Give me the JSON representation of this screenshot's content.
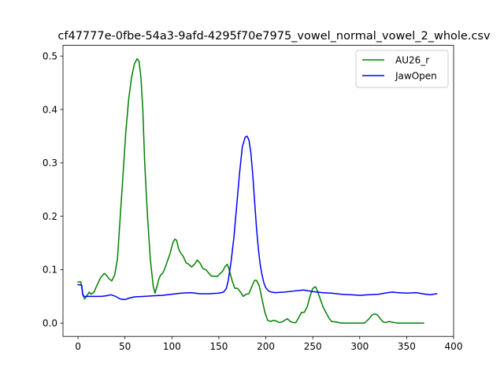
{
  "chart_data": {
    "type": "line",
    "title": "cf47777e-0fbe-54a3-9afd-4295f70e7975_vowel_normal_vowel_2_whole.csv",
    "xlabel": "",
    "ylabel": "",
    "xlim": [
      -16,
      400
    ],
    "ylim": [
      -0.025,
      0.52
    ],
    "xticks": [
      0,
      50,
      100,
      150,
      200,
      250,
      300,
      350,
      400
    ],
    "yticks": [
      0.0,
      0.1,
      0.2,
      0.3,
      0.4,
      0.5
    ],
    "ytick_labels": [
      "0.0",
      "0.1",
      "0.2",
      "0.3",
      "0.4",
      "0.5"
    ],
    "grid": false,
    "legend_position": "top-right",
    "series": [
      {
        "name": "AU26_r",
        "color": "#008000",
        "x": [
          0,
          3,
          5,
          7,
          9,
          12,
          14,
          17,
          20,
          24,
          28,
          30,
          33,
          36,
          39,
          42,
          45,
          48,
          51,
          54,
          57,
          60,
          63,
          65,
          67,
          69,
          71,
          74,
          77,
          80,
          82,
          84,
          86,
          88,
          90,
          92,
          95,
          98,
          101,
          103,
          105,
          107,
          109,
          112,
          115,
          118,
          121,
          124,
          127,
          130,
          133,
          136,
          139,
          142,
          145,
          148,
          151,
          154,
          157,
          159,
          161,
          164,
          167,
          170,
          173,
          176,
          179,
          182,
          185,
          188,
          190,
          193,
          196,
          199,
          202,
          205,
          208,
          211,
          214,
          217,
          220,
          223,
          226,
          229,
          232,
          235,
          238,
          241,
          244,
          247,
          250,
          253,
          255,
          258,
          261,
          264,
          267,
          270,
          275,
          280,
          285,
          290,
          295,
          300,
          305,
          310,
          313,
          316,
          319,
          322,
          325,
          328,
          331,
          334,
          337,
          340,
          345,
          350,
          355,
          360,
          368
        ],
        "y": [
          0.077,
          0.077,
          0.055,
          0.045,
          0.05,
          0.058,
          0.054,
          0.058,
          0.07,
          0.085,
          0.093,
          0.09,
          0.083,
          0.079,
          0.09,
          0.12,
          0.2,
          0.28,
          0.36,
          0.42,
          0.46,
          0.485,
          0.495,
          0.49,
          0.46,
          0.4,
          0.3,
          0.2,
          0.12,
          0.07,
          0.056,
          0.068,
          0.082,
          0.09,
          0.093,
          0.1,
          0.115,
          0.13,
          0.15,
          0.157,
          0.155,
          0.14,
          0.132,
          0.125,
          0.113,
          0.11,
          0.105,
          0.11,
          0.118,
          0.112,
          0.102,
          0.1,
          0.094,
          0.088,
          0.088,
          0.087,
          0.092,
          0.097,
          0.107,
          0.11,
          0.1,
          0.08,
          0.065,
          0.065,
          0.058,
          0.05,
          0.054,
          0.055,
          0.068,
          0.08,
          0.08,
          0.07,
          0.045,
          0.02,
          0.005,
          0.003,
          0.005,
          0.004,
          0.001,
          0.002,
          0.005,
          0.008,
          0.003,
          0.001,
          0.001,
          0.01,
          0.02,
          0.02,
          0.03,
          0.05,
          0.065,
          0.068,
          0.06,
          0.045,
          0.03,
          0.02,
          0.01,
          0.003,
          0.002,
          0.0,
          0.0,
          0.0,
          0.0,
          0.0,
          0.0,
          0.008,
          0.015,
          0.017,
          0.015,
          0.008,
          0.002,
          0.001,
          0.003,
          0.002,
          0.001,
          0.0,
          0.0,
          0.0,
          0.0,
          0.0,
          0.0
        ]
      },
      {
        "name": "JawOpen",
        "color": "#0000ff",
        "x": [
          0,
          4,
          5,
          6,
          10,
          15,
          20,
          25,
          30,
          35,
          40,
          45,
          50,
          55,
          60,
          70,
          80,
          90,
          100,
          110,
          120,
          130,
          140,
          150,
          155,
          158,
          160,
          163,
          166,
          169,
          172,
          175,
          178,
          180,
          182,
          184,
          186,
          188,
          190,
          192,
          194,
          196,
          198,
          200,
          203,
          206,
          210,
          220,
          230,
          240,
          250,
          260,
          270,
          280,
          290,
          300,
          310,
          320,
          330,
          335,
          340,
          350,
          360,
          370,
          375,
          382
        ],
        "y": [
          0.072,
          0.071,
          0.053,
          0.05,
          0.05,
          0.05,
          0.05,
          0.05,
          0.051,
          0.053,
          0.05,
          0.045,
          0.044,
          0.047,
          0.049,
          0.05,
          0.051,
          0.052,
          0.054,
          0.056,
          0.057,
          0.055,
          0.055,
          0.056,
          0.058,
          0.065,
          0.08,
          0.115,
          0.16,
          0.22,
          0.28,
          0.33,
          0.348,
          0.35,
          0.343,
          0.32,
          0.28,
          0.23,
          0.18,
          0.14,
          0.11,
          0.09,
          0.075,
          0.066,
          0.06,
          0.058,
          0.057,
          0.058,
          0.06,
          0.062,
          0.059,
          0.057,
          0.056,
          0.054,
          0.053,
          0.052,
          0.053,
          0.054,
          0.057,
          0.058,
          0.057,
          0.056,
          0.057,
          0.054,
          0.053,
          0.055
        ]
      }
    ]
  }
}
